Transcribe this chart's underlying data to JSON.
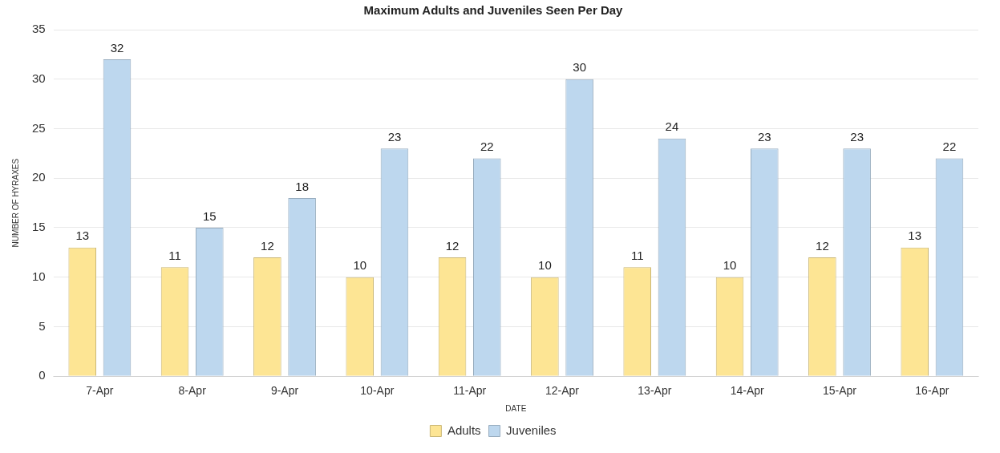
{
  "chart_data": {
    "type": "bar",
    "title": "Maximum Adults and Juveniles Seen Per Day",
    "xlabel": "DATE",
    "ylabel": "NUMBER OF HYRAXES",
    "categories": [
      "7-Apr",
      "8-Apr",
      "9-Apr",
      "10-Apr",
      "11-Apr",
      "12-Apr",
      "13-Apr",
      "14-Apr",
      "15-Apr",
      "16-Apr"
    ],
    "series": [
      {
        "name": "Adults",
        "color": "#fde594",
        "values": [
          13,
          11,
          12,
          10,
          12,
          10,
          11,
          10,
          12,
          13
        ]
      },
      {
        "name": "Juveniles",
        "color": "#bdd7ee",
        "values": [
          32,
          15,
          18,
          23,
          22,
          30,
          24,
          23,
          23,
          22
        ]
      }
    ],
    "ylim": [
      0,
      35
    ],
    "yticks": [
      0,
      5,
      10,
      15,
      20,
      25,
      30,
      35
    ],
    "grid": "y",
    "legend": "bottom",
    "data_labels": true
  }
}
